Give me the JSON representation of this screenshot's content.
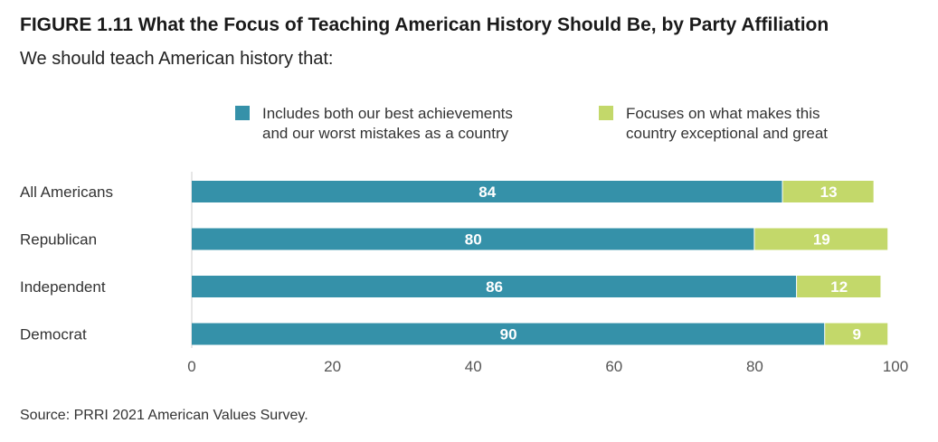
{
  "title": "FIGURE 1.11 What the Focus of Teaching American History Should Be, by Party Affiliation",
  "subtitle": "We should teach American history that:",
  "source": "Source: PRRI 2021 American Values Survey.",
  "legend": [
    {
      "lines": [
        "Includes both our best achievements",
        "and our worst mistakes as a country"
      ],
      "color": "#3591a9"
    },
    {
      "lines": [
        "Focuses on what makes this",
        "country exceptional and great"
      ],
      "color": "#c3d86a"
    }
  ],
  "chart_data": {
    "type": "bar",
    "orientation": "horizontal",
    "stacked": true,
    "categories": [
      "All Americans",
      "Republican",
      "Independent",
      "Democrat"
    ],
    "series": [
      {
        "name": "Includes both our best achievements and our worst mistakes as a country",
        "values": [
          84,
          80,
          86,
          90
        ],
        "color": "#3591a9"
      },
      {
        "name": "Focuses on what makes this country exceptional and great",
        "values": [
          13,
          19,
          12,
          9
        ],
        "color": "#c3d86a"
      }
    ],
    "xticks": [
      0,
      20,
      40,
      60,
      80,
      100
    ],
    "xlim": [
      0,
      100
    ],
    "grid": false,
    "legend_position": "top"
  }
}
